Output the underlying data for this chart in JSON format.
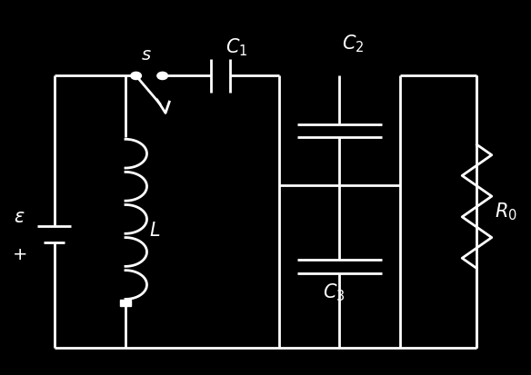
{
  "bg_color": "#000000",
  "wire_color": "#ffffff",
  "text_color": "#ffffff",
  "lw": 2.0,
  "fig_width": 5.84,
  "fig_height": 4.13
}
